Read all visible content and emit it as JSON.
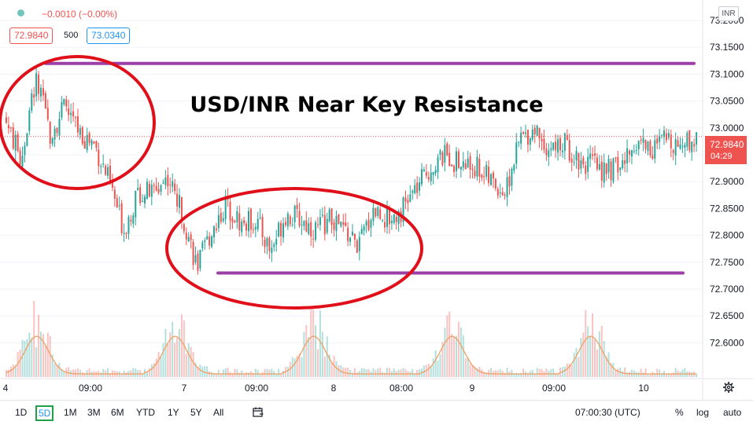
{
  "header": {
    "change_text": "−0.0010 (−0.00%)",
    "bid": "72.9840",
    "quantity": "500",
    "ask": "73.0340",
    "currency_badge": "INR"
  },
  "price_tag": {
    "price": "72.9840",
    "countdown": "04:29"
  },
  "chart_data": {
    "type": "candlestick",
    "title": "USD/INR Near Key Resistance",
    "y_tick_labels": [
      "73.2000",
      "73.1500",
      "73.1000",
      "73.0500",
      "73.0000",
      "72.9500",
      "72.9000",
      "72.8500",
      "72.8000",
      "72.7500",
      "72.7000",
      "72.6500",
      "72.6000"
    ],
    "ylim": [
      72.57,
      73.22
    ],
    "x_tick_labels": [
      "4",
      "09:00",
      "7",
      "09:00",
      "8",
      "08:00",
      "9",
      "09:00",
      "10"
    ],
    "last_price": 72.984,
    "resistance_level": 73.12,
    "support_level": 72.73,
    "series": [
      {
        "x": 0,
        "value": 73.01
      },
      {
        "x": 1,
        "value": 72.94
      },
      {
        "x": 2,
        "value": 73.09
      },
      {
        "x": 3,
        "value": 72.99
      },
      {
        "x": 4,
        "value": 73.04
      },
      {
        "x": 5,
        "value": 72.99
      },
      {
        "x": 6,
        "value": 72.97
      },
      {
        "x": 7,
        "value": 72.9
      },
      {
        "x": 8,
        "value": 72.81
      },
      {
        "x": 9,
        "value": 72.88
      },
      {
        "x": 10,
        "value": 72.88
      },
      {
        "x": 11,
        "value": 72.91
      },
      {
        "x": 12,
        "value": 72.84
      },
      {
        "x": 13,
        "value": 72.74
      },
      {
        "x": 14,
        "value": 72.81
      },
      {
        "x": 15,
        "value": 72.86
      },
      {
        "x": 16,
        "value": 72.82
      },
      {
        "x": 17,
        "value": 72.83
      },
      {
        "x": 18,
        "value": 72.77
      },
      {
        "x": 19,
        "value": 72.84
      },
      {
        "x": 20,
        "value": 72.83
      },
      {
        "x": 21,
        "value": 72.81
      },
      {
        "x": 22,
        "value": 72.83
      },
      {
        "x": 23,
        "value": 72.81
      },
      {
        "x": 24,
        "value": 72.78
      },
      {
        "x": 25,
        "value": 72.85
      },
      {
        "x": 26,
        "value": 72.83
      },
      {
        "x": 27,
        "value": 72.85
      },
      {
        "x": 28,
        "value": 72.89
      },
      {
        "x": 29,
        "value": 72.93
      },
      {
        "x": 30,
        "value": 72.95
      },
      {
        "x": 31,
        "value": 72.93
      },
      {
        "x": 32,
        "value": 72.93
      },
      {
        "x": 33,
        "value": 72.9
      },
      {
        "x": 34,
        "value": 72.88
      },
      {
        "x": 35,
        "value": 72.98
      },
      {
        "x": 36,
        "value": 73.0
      },
      {
        "x": 37,
        "value": 72.96
      },
      {
        "x": 38,
        "value": 72.97
      },
      {
        "x": 39,
        "value": 72.94
      },
      {
        "x": 40,
        "value": 72.93
      },
      {
        "x": 41,
        "value": 72.92
      },
      {
        "x": 42,
        "value": 72.93
      },
      {
        "x": 43,
        "value": 72.98
      },
      {
        "x": 44,
        "value": 72.96
      },
      {
        "x": 45,
        "value": 72.98
      },
      {
        "x": 46,
        "value": 72.97
      },
      {
        "x": 47,
        "value": 72.984
      }
    ]
  },
  "annotations": {
    "ellipse_labels": [
      "top-left-consolidation",
      "bottom-consolidation"
    ]
  },
  "bottom_bar": {
    "ranges": [
      "1D",
      "5D",
      "1M",
      "3M",
      "6M",
      "YTD",
      "1Y",
      "5Y",
      "All"
    ],
    "selected_range": "5D",
    "clock": "07:00:30 (UTC)",
    "percent": "%",
    "log": "log",
    "auto": "auto"
  },
  "colors": {
    "up": "#26a69a",
    "down": "#ef5350",
    "level_line": "#9c3fa6",
    "ellipse": "#e0101a",
    "volume_ma": "#f0a060"
  }
}
